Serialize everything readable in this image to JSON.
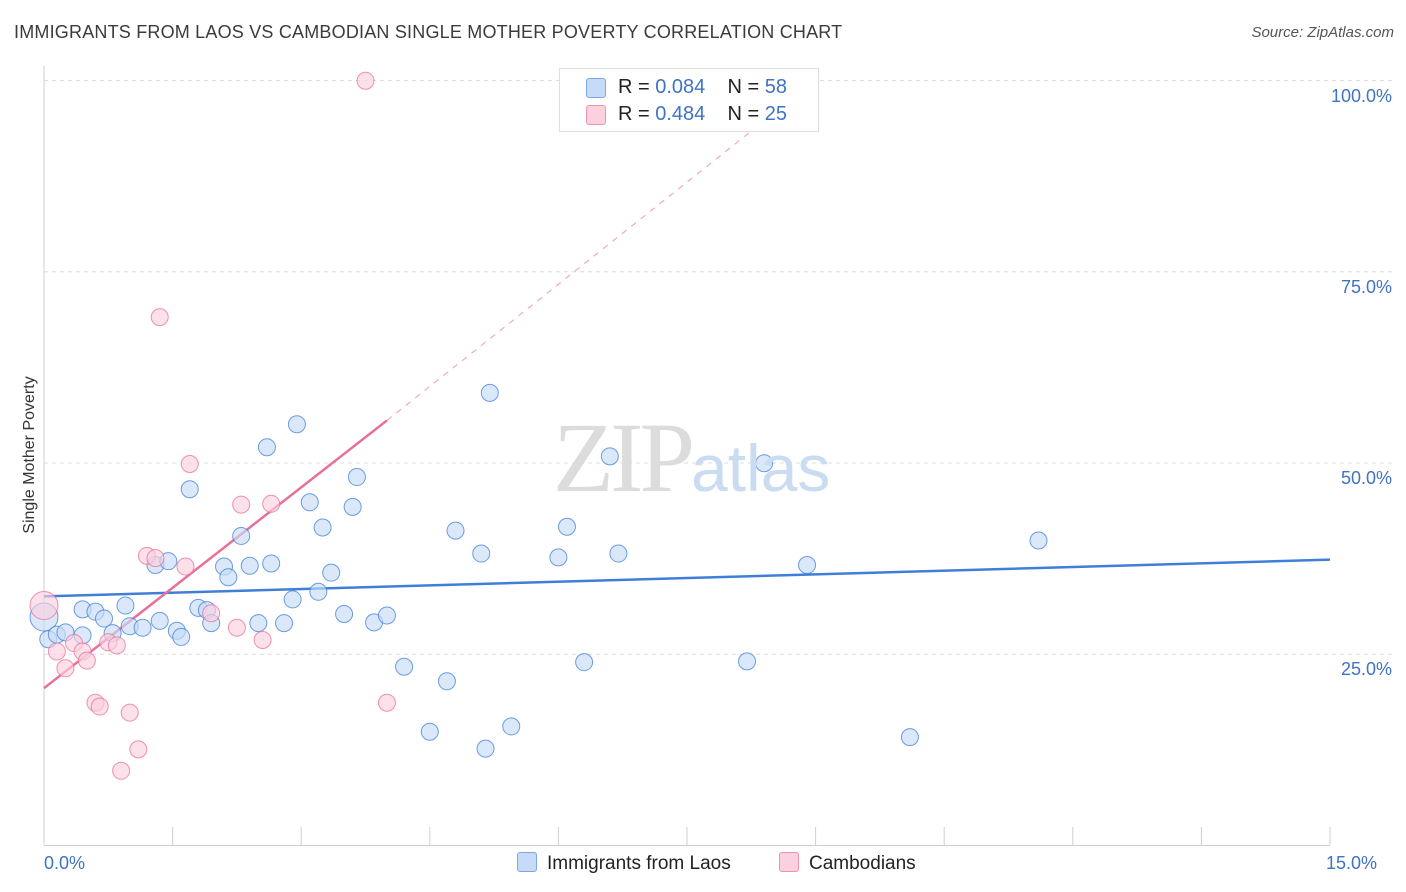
{
  "title": "IMMIGRANTS FROM LAOS VS CAMBODIAN SINGLE MOTHER POVERTY CORRELATION CHART",
  "source": "Source: ZipAtlas.com",
  "watermark": {
    "zip": "ZIP",
    "atlas": "atlas"
  },
  "legend": {
    "series": [
      {
        "r_label": "R =",
        "r_value": "0.084",
        "n_label": "N =",
        "n_value": "58",
        "color": "#b8d0f3",
        "border": "#7ea7e3"
      },
      {
        "r_label": "R =",
        "r_value": "0.484",
        "n_label": "N =",
        "n_value": "25",
        "color": "#f9c4d5",
        "border": "#ef93b0"
      }
    ]
  },
  "bottom_legend": {
    "laos": "Immigrants from Laos",
    "cambodians": "Cambodians"
  },
  "chart_data": {
    "type": "scatter",
    "title": "IMMIGRANTS FROM LAOS VS CAMBODIAN SINGLE MOTHER POVERTY CORRELATION CHART",
    "xlabel": "",
    "ylabel": "Single Mother Poverty",
    "xlim": [
      0,
      15
    ],
    "ylim": [
      0,
      100
    ],
    "x_ticks_labels": [
      "0.0%",
      "15.0%"
    ],
    "y_ticks_labels": [
      "25.0%",
      "50.0%",
      "75.0%",
      "100.0%"
    ],
    "y_ticks": [
      25,
      50,
      75,
      100
    ],
    "grid": "horizontal dashed",
    "legend_position": "top-center",
    "series": [
      {
        "name": "Immigrants from Laos",
        "color": "#3f7fd8",
        "fill": "#c6dbf7",
        "trend": {
          "x": [
            0,
            15
          ],
          "y": [
            32.5,
            37.3
          ]
        },
        "points": [
          [
            0.0,
            29.8
          ],
          [
            0.05,
            26.9
          ],
          [
            0.15,
            27.5
          ],
          [
            0.25,
            27.8
          ],
          [
            0.45,
            27.4
          ],
          [
            0.45,
            30.8
          ],
          [
            0.6,
            30.5
          ],
          [
            0.7,
            29.6
          ],
          [
            0.8,
            27.7
          ],
          [
            0.95,
            31.3
          ],
          [
            1.0,
            28.6
          ],
          [
            1.15,
            28.4
          ],
          [
            1.3,
            36.6
          ],
          [
            1.35,
            29.3
          ],
          [
            1.45,
            37.1
          ],
          [
            1.55,
            28.0
          ],
          [
            1.6,
            27.2
          ],
          [
            1.7,
            46.5
          ],
          [
            1.8,
            31.0
          ],
          [
            1.9,
            30.7
          ],
          [
            1.95,
            29.0
          ],
          [
            2.1,
            36.4
          ],
          [
            2.15,
            35.0
          ],
          [
            2.3,
            40.4
          ],
          [
            2.4,
            36.5
          ],
          [
            2.5,
            29.0
          ],
          [
            2.6,
            52.0
          ],
          [
            2.65,
            36.8
          ],
          [
            2.8,
            29.0
          ],
          [
            2.9,
            32.1
          ],
          [
            2.95,
            55.0
          ],
          [
            3.1,
            44.8
          ],
          [
            3.2,
            33.1
          ],
          [
            3.25,
            41.5
          ],
          [
            3.35,
            35.6
          ],
          [
            3.5,
            30.2
          ],
          [
            3.6,
            44.2
          ],
          [
            3.65,
            48.1
          ],
          [
            3.85,
            29.1
          ],
          [
            4.0,
            30.0
          ],
          [
            4.2,
            23.3
          ],
          [
            4.5,
            14.8
          ],
          [
            4.7,
            21.4
          ],
          [
            4.8,
            41.1
          ],
          [
            5.1,
            38.1
          ],
          [
            5.15,
            12.6
          ],
          [
            5.2,
            59.1
          ],
          [
            5.45,
            15.5
          ],
          [
            6.0,
            37.6
          ],
          [
            6.1,
            41.6
          ],
          [
            6.3,
            23.9
          ],
          [
            6.6,
            50.8
          ],
          [
            6.7,
            38.1
          ],
          [
            8.2,
            24.0
          ],
          [
            8.4,
            49.9
          ],
          [
            8.9,
            36.6
          ],
          [
            10.1,
            14.1
          ],
          [
            11.6,
            39.8
          ]
        ]
      },
      {
        "name": "Cambodians",
        "color": "#e8709a",
        "fill": "#fbd0df",
        "trend": {
          "x": [
            0,
            4.0
          ],
          "y": [
            20.5,
            55.5
          ]
        },
        "trend_extension": {
          "x": [
            4.0,
            9.0
          ],
          "y": [
            55.5,
            100
          ]
        },
        "points": [
          [
            0.0,
            31.3
          ],
          [
            0.15,
            25.3
          ],
          [
            0.25,
            23.1
          ],
          [
            0.35,
            26.4
          ],
          [
            0.45,
            25.3
          ],
          [
            0.5,
            24.1
          ],
          [
            0.6,
            18.6
          ],
          [
            0.65,
            18.1
          ],
          [
            0.75,
            26.5
          ],
          [
            0.85,
            26.1
          ],
          [
            0.9,
            9.7
          ],
          [
            1.0,
            17.3
          ],
          [
            1.1,
            12.5
          ],
          [
            1.2,
            37.8
          ],
          [
            1.3,
            37.5
          ],
          [
            1.35,
            69.0
          ],
          [
            1.65,
            36.4
          ],
          [
            1.7,
            49.8
          ],
          [
            1.95,
            30.3
          ],
          [
            2.25,
            28.4
          ],
          [
            2.3,
            44.5
          ],
          [
            2.55,
            26.8
          ],
          [
            2.65,
            44.6
          ],
          [
            3.75,
            99.9
          ],
          [
            4.0,
            18.6
          ]
        ]
      }
    ]
  }
}
